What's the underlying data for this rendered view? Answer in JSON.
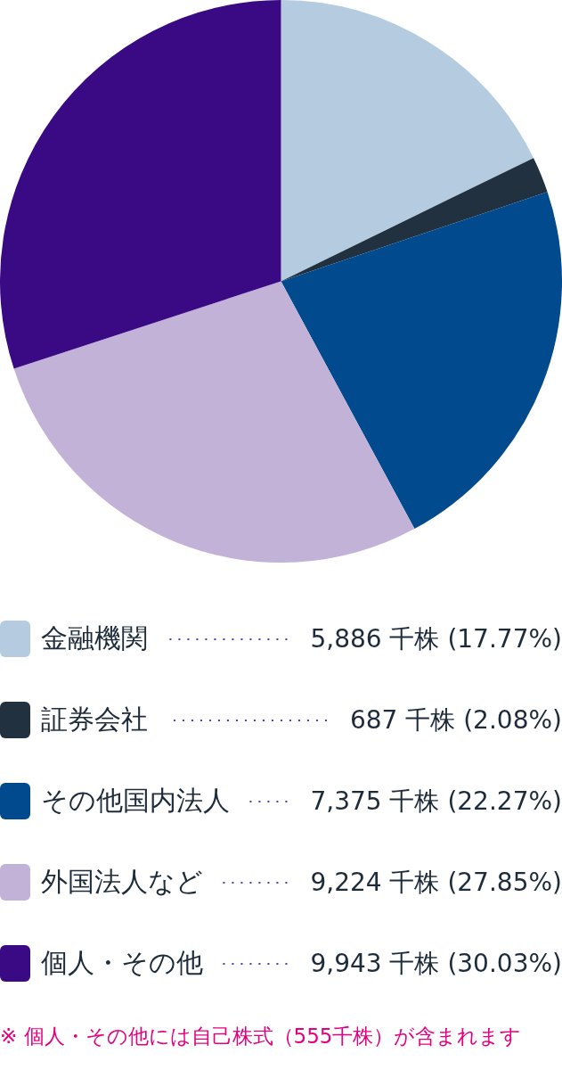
{
  "chart_data": {
    "type": "pie",
    "categories": [
      "金融機関",
      "証券会社",
      "その他国内法人",
      "外国法人など",
      "個人・その他"
    ],
    "values": [
      5886,
      687,
      7375,
      9224,
      9943
    ],
    "colors": [
      "#b4cbe0",
      "#22313f",
      "#004a8d",
      "#c3b2d7",
      "#3a0a84"
    ],
    "value_labels": [
      "5,886 千株 (17.77%)",
      "687 千株 (2.08%)",
      "7,375 千株 (22.27%)",
      "9,224 千株 (27.85%)",
      "9,943 千株 (30.03%)"
    ],
    "legend": "bottom",
    "annotations": [
      "※ 個人・その他には自己株式（555千株）が含まれます"
    ]
  }
}
